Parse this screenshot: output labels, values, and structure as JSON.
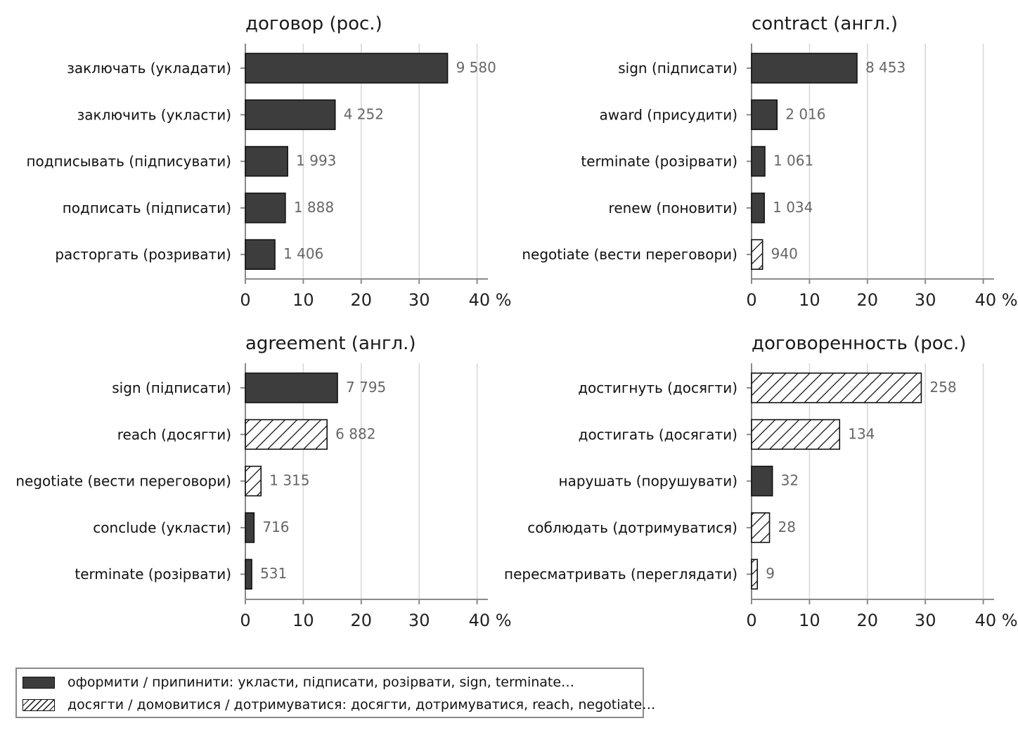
{
  "chart_data": [
    {
      "type": "bar",
      "title": "договор (рос.)",
      "categories": [
        "заключать (укладати)",
        "заключить (укласти)",
        "подписывать (підписувати)",
        "подписать (підписати)",
        "расторгать (розривати)"
      ],
      "values": [
        34.9,
        15.5,
        7.3,
        6.9,
        5.1
      ],
      "value_labels": [
        "9 580",
        "4 252",
        "1 993",
        "1 888",
        "1 406"
      ],
      "groups": [
        "formalize",
        "formalize",
        "formalize",
        "formalize",
        "formalize"
      ],
      "xlim": [
        0,
        42
      ],
      "xticks": [
        "0",
        "10",
        "20",
        "30",
        "40 %"
      ],
      "grid": true
    },
    {
      "type": "bar",
      "title": "contract (англ.)",
      "categories": [
        "sign (підписати)",
        "award (присудити)",
        "terminate (розірвати)",
        "renew (поновити)",
        "negotiate (вести переговори)"
      ],
      "values": [
        18.2,
        4.4,
        2.3,
        2.2,
        1.9
      ],
      "value_labels": [
        "8 453",
        "2 016",
        "1 061",
        "1 034",
        "940"
      ],
      "groups": [
        "formalize",
        "formalize",
        "formalize",
        "formalize",
        "agree"
      ],
      "xlim": [
        0,
        42
      ],
      "xticks": [
        "0",
        "10",
        "20",
        "30",
        "40 %"
      ],
      "grid": true
    },
    {
      "type": "bar",
      "title": "agreement (англ.)",
      "categories": [
        "sign (підписати)",
        "reach (досягти)",
        "negotiate (вести переговори)",
        "conclude (укласти)",
        "terminate (розірвати)"
      ],
      "values": [
        15.9,
        14.1,
        2.7,
        1.5,
        1.1
      ],
      "value_labels": [
        "7 795",
        "6 882",
        "1 315",
        "716",
        "531"
      ],
      "groups": [
        "formalize",
        "agree",
        "agree",
        "formalize",
        "formalize"
      ],
      "xlim": [
        0,
        42
      ],
      "xticks": [
        "0",
        "10",
        "20",
        "30",
        "40 %"
      ],
      "grid": true
    },
    {
      "type": "bar",
      "title": "договоренность (рос.)",
      "categories": [
        "достигнуть (досягти)",
        "достигать (досягати)",
        "нарушать (порушувати)",
        "соблюдать (дотримуватися)",
        "пересматривать (переглядати)"
      ],
      "values": [
        29.3,
        15.2,
        3.6,
        3.1,
        1.0
      ],
      "value_labels": [
        "258",
        "134",
        "32",
        "28",
        "9"
      ],
      "groups": [
        "agree",
        "agree",
        "formalize",
        "agree",
        "agree"
      ],
      "xlim": [
        0,
        42
      ],
      "xticks": [
        "0",
        "10",
        "20",
        "30",
        "40 %"
      ],
      "grid": true
    }
  ],
  "legend": {
    "placement": "bottom-left",
    "items": [
      {
        "key": "formalize",
        "label": "оформити / припинити: укласти, підписати, розірвати, sign, terminate…",
        "style": "solid",
        "color": "#3d3d3d"
      },
      {
        "key": "agree",
        "label": "досягти / домовитися / дотримуватися: досягти, дотримуватися, reach, negotiate…",
        "style": "hatched",
        "color": "#ffffff"
      }
    ]
  },
  "colors": {
    "solid_bar": "#3d3d3d",
    "bar_edge": "#111111",
    "grid": "#d9d9d9",
    "axis": "#8a8a8a",
    "value_label": "#666666"
  }
}
